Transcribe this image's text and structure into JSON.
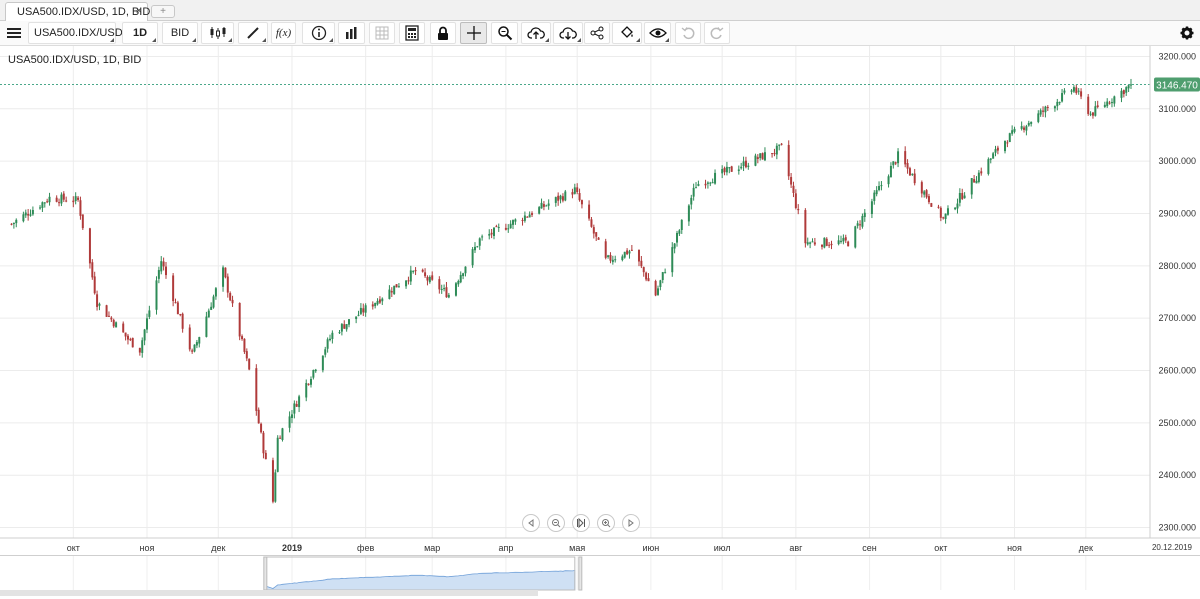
{
  "tab": {
    "title": "USA500.IDX/USD, 1D, BID",
    "close": "×",
    "add": "+"
  },
  "toolbar": {
    "instrument": "USA500.IDX/USD",
    "period": "1D",
    "side": "BID",
    "fx_label": "f(x)"
  },
  "chart_title": "USA500.IDX/USD, 1D, BID",
  "last_price_label": "3146.470",
  "date_label": "20.12.2019",
  "colors": {
    "up": "#2e8b57",
    "down": "#b03a3a",
    "grid": "#ececec",
    "price_line": "#4aa88a",
    "price_badge": "#4f9e6f",
    "navigator_fill": "#cfe0f4",
    "navigator_line": "#6f9fd8"
  },
  "icons": [
    "menu-icon",
    "candles-icon",
    "pencil-icon",
    "info-icon",
    "bar-chart-icon",
    "grid-icon",
    "calculator-icon",
    "lock-icon",
    "crosshair-icon",
    "zoom-icon",
    "upload-cloud-icon",
    "download-cloud-icon",
    "share-icon",
    "paint-bucket-icon",
    "eye-icon",
    "undo-icon",
    "redo-icon",
    "gear-icon"
  ],
  "chart_data": {
    "type": "candlestick",
    "title": "USA500.IDX/USD, 1D, BID",
    "y_axis": {
      "min": 2280,
      "max": 3220,
      "ticks": [
        "3200.000",
        "3100.000",
        "3000.000",
        "2900.000",
        "2800.000",
        "2700.000",
        "2600.000",
        "2500.000",
        "2400.000",
        "2300.000"
      ]
    },
    "x_axis": {
      "labels": [
        "окт",
        "ноя",
        "дек",
        "2019",
        "фев",
        "мар",
        "апр",
        "мая",
        "июн",
        "июл",
        "авг",
        "сен",
        "окт",
        "ноя",
        "дек"
      ]
    },
    "last_price": 3146.47,
    "close_path": [
      [
        "2018-09-05",
        2880
      ],
      [
        "2018-09-21",
        2930
      ],
      [
        "2018-10-03",
        2925
      ],
      [
        "2018-10-11",
        2730
      ],
      [
        "2018-10-24",
        2660
      ],
      [
        "2018-10-29",
        2640
      ],
      [
        "2018-11-07",
        2810
      ],
      [
        "2018-11-20",
        2630
      ],
      [
        "2018-12-03",
        2790
      ],
      [
        "2018-12-14",
        2600
      ],
      [
        "2018-12-24",
        2350
      ],
      [
        "2018-12-26",
        2470
      ],
      [
        "2019-01-18",
        2670
      ],
      [
        "2019-02-22",
        2790
      ],
      [
        "2019-03-08",
        2745
      ],
      [
        "2019-03-21",
        2850
      ],
      [
        "2019-04-30",
        2945
      ],
      [
        "2019-05-13",
        2810
      ],
      [
        "2019-05-24",
        2830
      ],
      [
        "2019-06-03",
        2745
      ],
      [
        "2019-06-20",
        2955
      ],
      [
        "2019-07-26",
        3025
      ],
      [
        "2019-08-05",
        2845
      ],
      [
        "2019-08-23",
        2845
      ],
      [
        "2019-09-13",
        3010
      ],
      [
        "2019-10-02",
        2890
      ],
      [
        "2019-10-28",
        3040
      ],
      [
        "2019-11-26",
        3140
      ],
      [
        "2019-12-03",
        3090
      ],
      [
        "2019-12-20",
        3146
      ]
    ]
  },
  "navigator": {
    "range_start": "2018-12-21",
    "range_end": "2019-04-30"
  }
}
